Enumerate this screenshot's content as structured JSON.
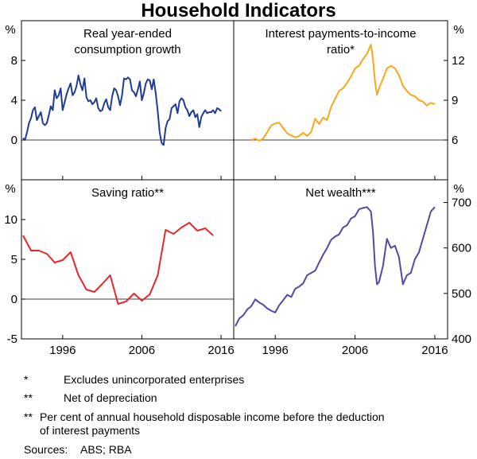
{
  "chart_data": {
    "type": "line",
    "title": "Household Indicators",
    "x_tick_labels": [
      "1996",
      "2006",
      "2016"
    ],
    "xlim": [
      1990.8,
      2017.6
    ],
    "panels": [
      {
        "id": "consumption",
        "title_lines": [
          "Real year-ended",
          "consumption growth"
        ],
        "left_unit": "%",
        "right_unit": "",
        "ylim": [
          -4,
          12
        ],
        "left_ticks": [
          "0",
          "4",
          "8"
        ],
        "left_tick_values": [
          0,
          4,
          8
        ],
        "right_ticks": [],
        "right_tick_values": [],
        "zero_line": 0,
        "series": [
          {
            "name": "Real year-ended consumption growth",
            "color": "#1f3c93",
            "x": [
              1991.0,
              1991.25,
              1991.5,
              1991.75,
              1992.0,
              1992.25,
              1992.5,
              1992.75,
              1993.0,
              1993.25,
              1993.5,
              1993.75,
              1994.0,
              1994.25,
              1994.5,
              1994.75,
              1995.0,
              1995.25,
              1995.5,
              1995.75,
              1996.0,
              1996.25,
              1996.5,
              1996.75,
              1997.0,
              1997.25,
              1997.5,
              1997.75,
              1998.0,
              1998.25,
              1998.5,
              1998.75,
              1999.0,
              1999.25,
              1999.5,
              1999.75,
              2000.0,
              2000.25,
              2000.5,
              2000.75,
              2001.0,
              2001.25,
              2001.5,
              2001.75,
              2002.0,
              2002.25,
              2002.5,
              2002.75,
              2003.0,
              2003.25,
              2003.5,
              2003.75,
              2004.0,
              2004.25,
              2004.5,
              2004.75,
              2005.0,
              2005.25,
              2005.5,
              2005.75,
              2006.0,
              2006.25,
              2006.5,
              2006.75,
              2007.0,
              2007.25,
              2007.5,
              2007.75,
              2008.0,
              2008.25,
              2008.5,
              2008.75,
              2009.0,
              2009.25,
              2009.5,
              2009.75,
              2010.0,
              2010.25,
              2010.5,
              2010.75,
              2011.0,
              2011.25,
              2011.5,
              2011.75,
              2012.0,
              2012.25,
              2012.5,
              2012.75,
              2013.0,
              2013.25,
              2013.5,
              2013.75,
              2014.0,
              2014.25,
              2014.5,
              2014.75,
              2015.0,
              2015.25,
              2015.5,
              2015.75,
              2016.0
            ],
            "values": [
              0.2,
              0.0,
              0.8,
              1.7,
              2.2,
              3.0,
              3.3,
              2.0,
              2.4,
              2.8,
              1.7,
              1.5,
              1.7,
              2.5,
              3.4,
              3.0,
              5.0,
              4.2,
              4.5,
              5.2,
              3.0,
              3.8,
              4.6,
              5.2,
              5.7,
              4.5,
              4.8,
              5.4,
              6.5,
              5.6,
              5.0,
              6.2,
              4.3,
              3.9,
              4.0,
              3.6,
              3.8,
              4.2,
              3.2,
              2.9,
              3.0,
              3.7,
              4.1,
              3.3,
              3.0,
              4.4,
              5.2,
              5.0,
              4.4,
              3.5,
              4.5,
              6.2,
              6.1,
              6.3,
              6.1,
              5.0,
              4.8,
              4.4,
              5.1,
              5.9,
              4.0,
              4.7,
              5.7,
              6.1,
              6.0,
              5.1,
              6.1,
              4.7,
              2.9,
              0.8,
              -0.3,
              -0.5,
              1.2,
              1.9,
              2.1,
              3.2,
              3.4,
              3.6,
              2.7,
              3.9,
              4.2,
              4.0,
              3.3,
              3.0,
              2.4,
              2.8,
              3.0,
              2.3,
              2.6,
              1.3,
              2.3,
              2.7,
              3.0,
              2.7,
              2.8,
              2.8,
              3.0,
              2.7,
              3.2,
              3.1,
              2.9
            ]
          }
        ]
      },
      {
        "id": "interest",
        "title_lines": [
          "Interest payments-to-income",
          "ratio*"
        ],
        "left_unit": "",
        "right_unit": "%",
        "ylim": [
          3,
          15
        ],
        "left_ticks": [],
        "left_tick_values": [],
        "right_ticks": [
          "6",
          "9",
          "12"
        ],
        "right_tick_values": [
          6,
          9,
          12
        ],
        "zero_line": 6,
        "series": [
          {
            "name": "Interest payments-to-income ratio",
            "color": "#f5a81c",
            "x": [
              1993.0,
              1993.5,
              1994.0,
              1994.5,
              1995.0,
              1995.5,
              1996.0,
              1996.5,
              1997.0,
              1997.5,
              1998.0,
              1998.5,
              1999.0,
              1999.5,
              2000.0,
              2000.5,
              2001.0,
              2001.5,
              2002.0,
              2002.5,
              2003.0,
              2003.5,
              2004.0,
              2004.5,
              2005.0,
              2005.5,
              2006.0,
              2006.5,
              2007.0,
              2007.5,
              2008.0,
              2008.25,
              2008.5,
              2008.75,
              2009.0,
              2009.5,
              2010.0,
              2010.5,
              2011.0,
              2011.5,
              2012.0,
              2012.5,
              2013.0,
              2013.5,
              2014.0,
              2014.5,
              2015.0,
              2015.5,
              2016.0
            ],
            "values": [
              6.0,
              6.1,
              5.95,
              6.1,
              6.6,
              7.1,
              7.25,
              7.3,
              6.9,
              6.5,
              6.35,
              6.2,
              6.3,
              6.55,
              6.3,
              6.6,
              7.6,
              7.2,
              7.7,
              7.5,
              8.5,
              9.1,
              9.7,
              9.9,
              10.3,
              10.8,
              11.4,
              11.6,
              12.1,
              12.5,
              13.2,
              12.1,
              10.4,
              9.4,
              9.9,
              10.6,
              11.4,
              11.6,
              11.4,
              10.9,
              10.1,
              9.7,
              9.4,
              9.3,
              9.0,
              8.9,
              8.6,
              8.8,
              8.7
            ]
          }
        ]
      },
      {
        "id": "saving",
        "title_lines": [
          "Saving ratio**"
        ],
        "left_unit": "%",
        "right_unit": "",
        "ylim": [
          -5,
          15
        ],
        "left_ticks": [
          "-5",
          "0",
          "5",
          "10"
        ],
        "left_tick_values": [
          -5,
          0,
          5,
          10
        ],
        "right_ticks": [],
        "right_tick_values": [],
        "zero_line": 0,
        "series": [
          {
            "name": "Saving ratio",
            "color": "#e8262a",
            "x": [
              1991.0,
              1992.0,
              1993.0,
              1994.0,
              1995.0,
              1996.0,
              1997.0,
              1998.0,
              1999.0,
              2000.0,
              2001.0,
              2002.0,
              2003.0,
              2004.0,
              2005.0,
              2006.0,
              2007.0,
              2008.0,
              2009.0,
              2010.0,
              2011.0,
              2012.0,
              2013.0,
              2014.0,
              2015.0
            ],
            "values": [
              8.0,
              6.1,
              6.1,
              5.7,
              4.6,
              4.9,
              5.9,
              3.0,
              1.2,
              0.9,
              1.9,
              3.0,
              -0.6,
              -0.3,
              0.7,
              -0.2,
              0.6,
              3.0,
              8.7,
              8.2,
              9.0,
              9.6,
              8.6,
              8.9,
              8.0
            ]
          }
        ]
      },
      {
        "id": "wealth",
        "title_lines": [
          "Net wealth***"
        ],
        "left_unit": "",
        "right_unit": "%",
        "ylim": [
          400,
          750
        ],
        "left_ticks": [],
        "left_tick_values": [],
        "right_ticks": [
          "400",
          "500",
          "600",
          "700"
        ],
        "right_tick_values": [
          400,
          500,
          600,
          700
        ],
        "zero_line": null,
        "series": [
          {
            "name": "Net wealth",
            "color": "#5049a3",
            "x": [
              1991.0,
              1991.5,
              1992.0,
              1992.5,
              1993.0,
              1993.5,
              1994.0,
              1994.5,
              1995.0,
              1995.5,
              1996.0,
              1996.5,
              1997.0,
              1997.5,
              1998.0,
              1998.5,
              1999.0,
              1999.5,
              2000.0,
              2000.5,
              2001.0,
              2001.5,
              2002.0,
              2002.5,
              2003.0,
              2003.5,
              2004.0,
              2004.5,
              2005.0,
              2005.5,
              2006.0,
              2006.5,
              2007.0,
              2007.5,
              2008.0,
              2008.25,
              2008.5,
              2008.75,
              2009.0,
              2009.5,
              2010.0,
              2010.5,
              2011.0,
              2011.5,
              2012.0,
              2012.5,
              2013.0,
              2013.5,
              2014.0,
              2014.5,
              2015.0,
              2015.5,
              2016.0
            ],
            "values": [
              428,
              445,
              452,
              465,
              472,
              487,
              480,
              475,
              467,
              462,
              458,
              474,
              485,
              497,
              492,
              510,
              515,
              522,
              540,
              545,
              550,
              568,
              585,
              600,
              618,
              625,
              630,
              645,
              650,
              665,
              670,
              685,
              688,
              690,
              680,
              635,
              560,
              520,
              525,
              560,
              620,
              600,
              605,
              580,
              520,
              540,
              545,
              575,
              590,
              620,
              650,
              680,
              690
            ]
          }
        ]
      }
    ]
  },
  "footnotes": [
    {
      "mark": "*",
      "text": "Excludes unincorporated enterprises"
    },
    {
      "mark": "**",
      "text": "Net of depreciation"
    },
    {
      "mark": "**",
      "text_lines": [
        "Per cent of annual household disposable income before the deduction",
        "of interest payments"
      ]
    }
  ],
  "sources": {
    "label": "Sources:",
    "text": "ABS; RBA"
  }
}
